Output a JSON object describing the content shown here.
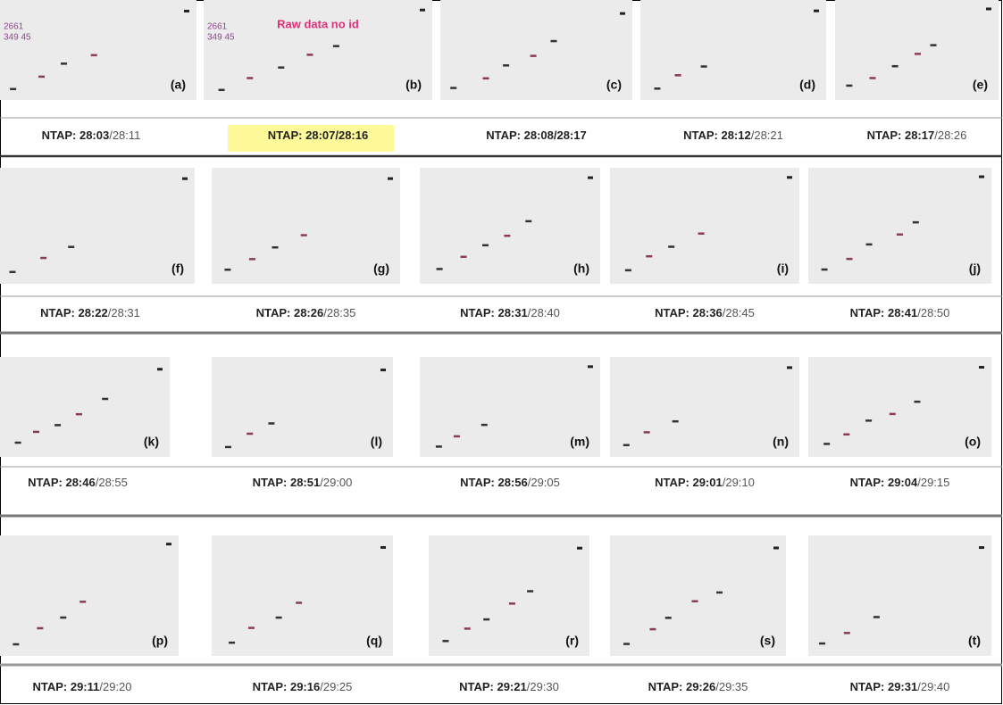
{
  "panels": [
    {
      "label": "(a)",
      "caption": {
        "bold": "NTAP: 28:03",
        "rest": "/28:11"
      },
      "annotations": [
        "2661",
        "349 45"
      ]
    },
    {
      "label": "(b)",
      "caption": {
        "bold": "NTAP: 28:07/28:16"
      },
      "annotations": [
        "Raw data no id",
        "2661",
        "349 45"
      ]
    },
    {
      "label": "(c)",
      "caption": {
        "bold": "NTAP: 28:08/28:17"
      }
    },
    {
      "label": "(d)",
      "caption": {
        "bold": "NTAP: 28:12",
        "rest": "/28:21"
      }
    },
    {
      "label": "(e)",
      "caption": {
        "bold": "NTAP: 28:17",
        "rest": "/28:26"
      }
    },
    {
      "label": "(f)",
      "caption": {
        "bold": "NTAP: 28:22",
        "rest": "/28:31"
      }
    },
    {
      "label": "(g)",
      "caption": {
        "bold": "NTAP: 28:26",
        "rest": "/28:35"
      }
    },
    {
      "label": "(h)",
      "caption": {
        "bold": "NTAP: 28:31",
        "rest": "/28:40"
      }
    },
    {
      "label": "(i)",
      "caption": {
        "bold": "NTAP: 28:36",
        "rest": "/28:45"
      }
    },
    {
      "label": "(j)",
      "caption": {
        "bold": "NTAP: 28:41",
        "rest": "/28:50"
      }
    },
    {
      "label": "(k)",
      "caption": {
        "bold": "NTAP: 28:46",
        "rest": "/28:55"
      }
    },
    {
      "label": "(l)",
      "caption": {
        "bold": "NTAP: 28:51",
        "rest": "/29:00"
      }
    },
    {
      "label": "(m)",
      "caption": {
        "bold": "NTAP: 28:56",
        "rest": "/29:05"
      }
    },
    {
      "label": "(n)",
      "caption": {
        "bold": "NTAP: 29:01",
        "rest": "/29:10"
      }
    },
    {
      "label": "(o)",
      "caption": {
        "bold": "NTAP: 29:04",
        "rest": "/29:15"
      }
    },
    {
      "label": "(p)",
      "caption": {
        "bold": "NTAP: 29:11",
        "rest": "/29:20"
      }
    },
    {
      "label": "(q)",
      "caption": {
        "bold": "NTAP: 29:16",
        "rest": "/29:25"
      }
    },
    {
      "label": "(r)",
      "caption": {
        "bold": "NTAP: 29:21",
        "rest": "/29:30"
      }
    },
    {
      "label": "(s)",
      "caption": {
        "bold": "NTAP: 29:26",
        "rest": "/29:35"
      }
    },
    {
      "label": "(t)",
      "caption": {
        "bold": "NTAP: 29:31",
        "rest": "/29:40"
      }
    }
  ]
}
